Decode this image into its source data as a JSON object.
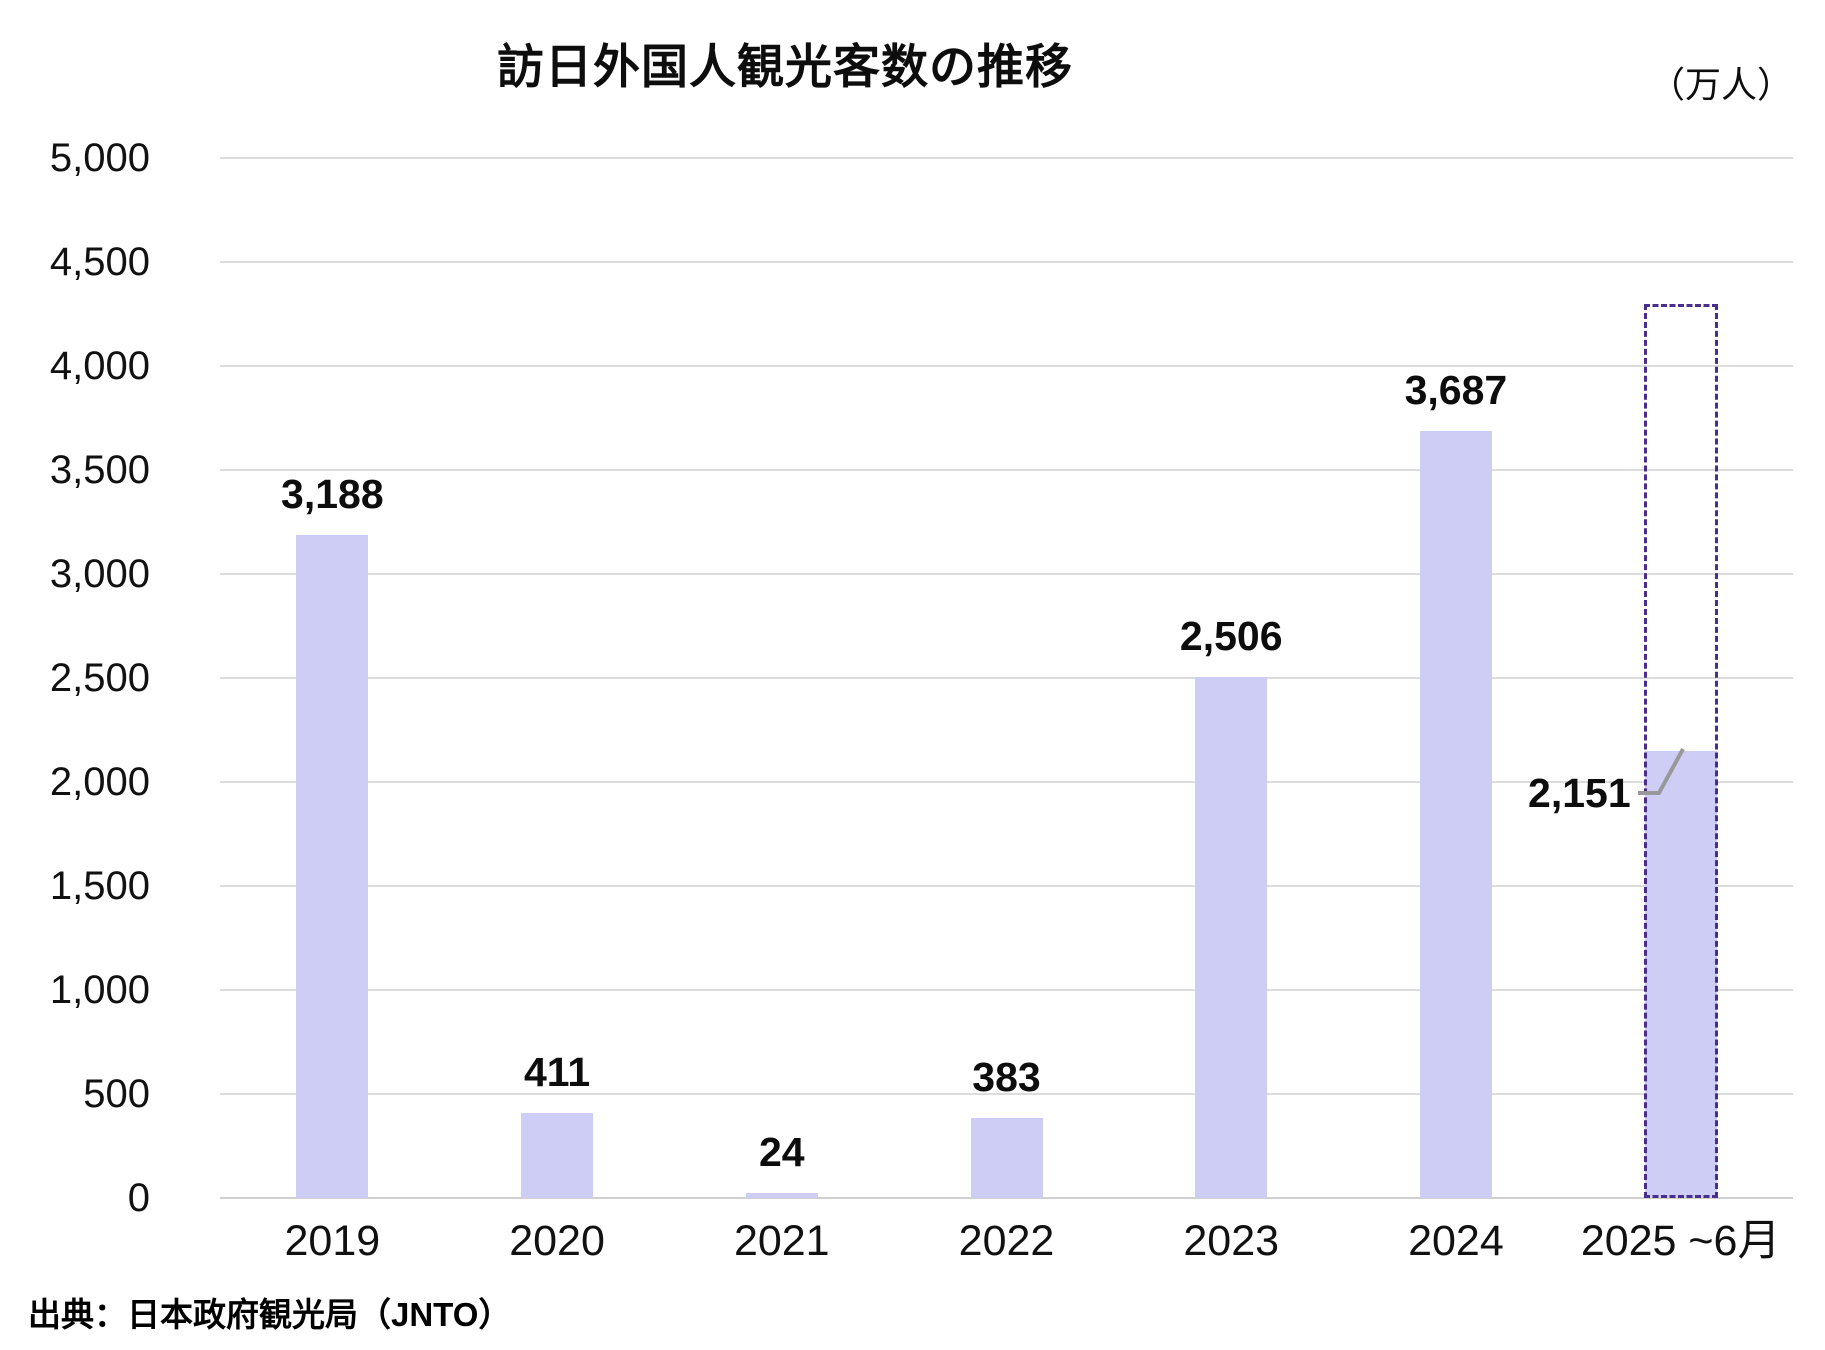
{
  "chart_data": {
    "type": "bar",
    "title": "訪日外国人観光客数の推移",
    "unit_label": "（万人）",
    "categories": [
      "2019",
      "2020",
      "2021",
      "2022",
      "2023",
      "2024",
      "2025 ~6月"
    ],
    "values": [
      3188,
      411,
      24,
      383,
      2506,
      3687,
      2151
    ],
    "value_labels": [
      "3,188",
      "411",
      "24",
      "383",
      "2,506",
      "3,687",
      "2,151"
    ],
    "ylim": [
      0,
      5000
    ],
    "ytick_step": 500,
    "ytick_labels": [
      "0",
      "500",
      "1,000",
      "1,500",
      "2,000",
      "2,500",
      "3,000",
      "3,500",
      "4,000",
      "4,500",
      "5,000"
    ],
    "grid": true,
    "legend": "none",
    "bar_color": "#cdcdf6",
    "gridline_color": "#dcdcdc",
    "text_color": "#0d0d0d",
    "dashed_box": {
      "category_index": 6,
      "top_value": 4300,
      "border_color": "#4a2e8f"
    },
    "leader_label": {
      "category_index": 6,
      "text": "2,151",
      "line_color": "#999999"
    },
    "source": "出典：日本政府観光局（JNTO）"
  }
}
